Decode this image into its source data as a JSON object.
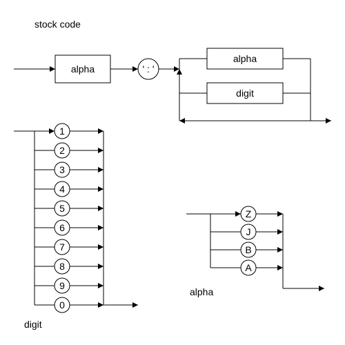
{
  "title": "stock code",
  "colors": {
    "background": "#ffffff",
    "stroke": "#000000",
    "text": "#000000",
    "fill": "#ffffff"
  },
  "stroke_width": 1,
  "font": {
    "family": "Arial",
    "size": 14
  },
  "stock_rule": {
    "box_label": "alpha",
    "separator": "' : '",
    "group_top_label": "alpha",
    "group_bottom_label": "digit"
  },
  "digit_rule": {
    "label": "digit",
    "options": [
      "1",
      "2",
      "3",
      "4",
      "5",
      "6",
      "7",
      "8",
      "9",
      "0"
    ]
  },
  "alpha_rule": {
    "label": "alpha",
    "options": [
      "Z",
      "J",
      "B",
      "A"
    ]
  }
}
